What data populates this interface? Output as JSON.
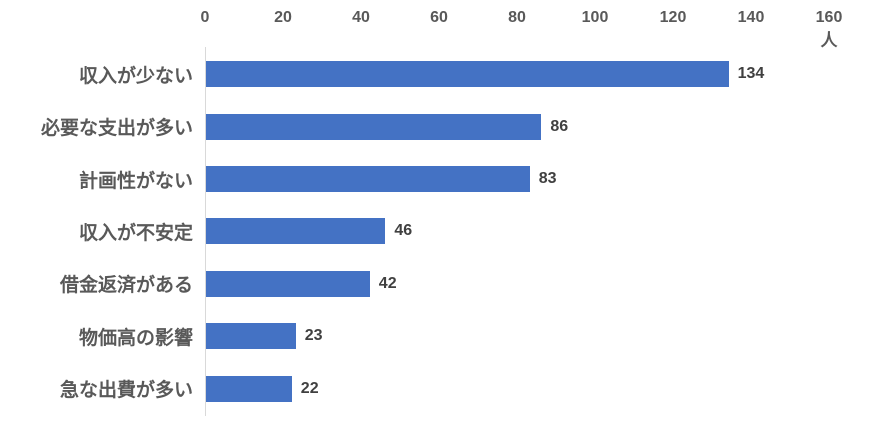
{
  "chart_data": {
    "type": "bar",
    "orientation": "horizontal",
    "title": "",
    "categories": [
      "収入が少ない",
      "必要な支出が多い",
      "計画性がない",
      "収入が不安定",
      "借金返済がある",
      "物価高の影響",
      "急な出費が多い"
    ],
    "values": [
      134,
      86,
      83,
      46,
      42,
      23,
      22
    ],
    "x_ticks": [
      0,
      20,
      40,
      60,
      80,
      100,
      120,
      140,
      160
    ],
    "xlim": [
      0,
      160
    ],
    "unit_label": "人",
    "data_labels_shown": true,
    "grid": false,
    "legend": false,
    "colors": {
      "bar": "#4472C4",
      "axis_line": "#D9D9D9",
      "tick_text": "#595959",
      "category_text": "#595959",
      "value_text": "#404040",
      "background": "#FFFFFF"
    }
  }
}
